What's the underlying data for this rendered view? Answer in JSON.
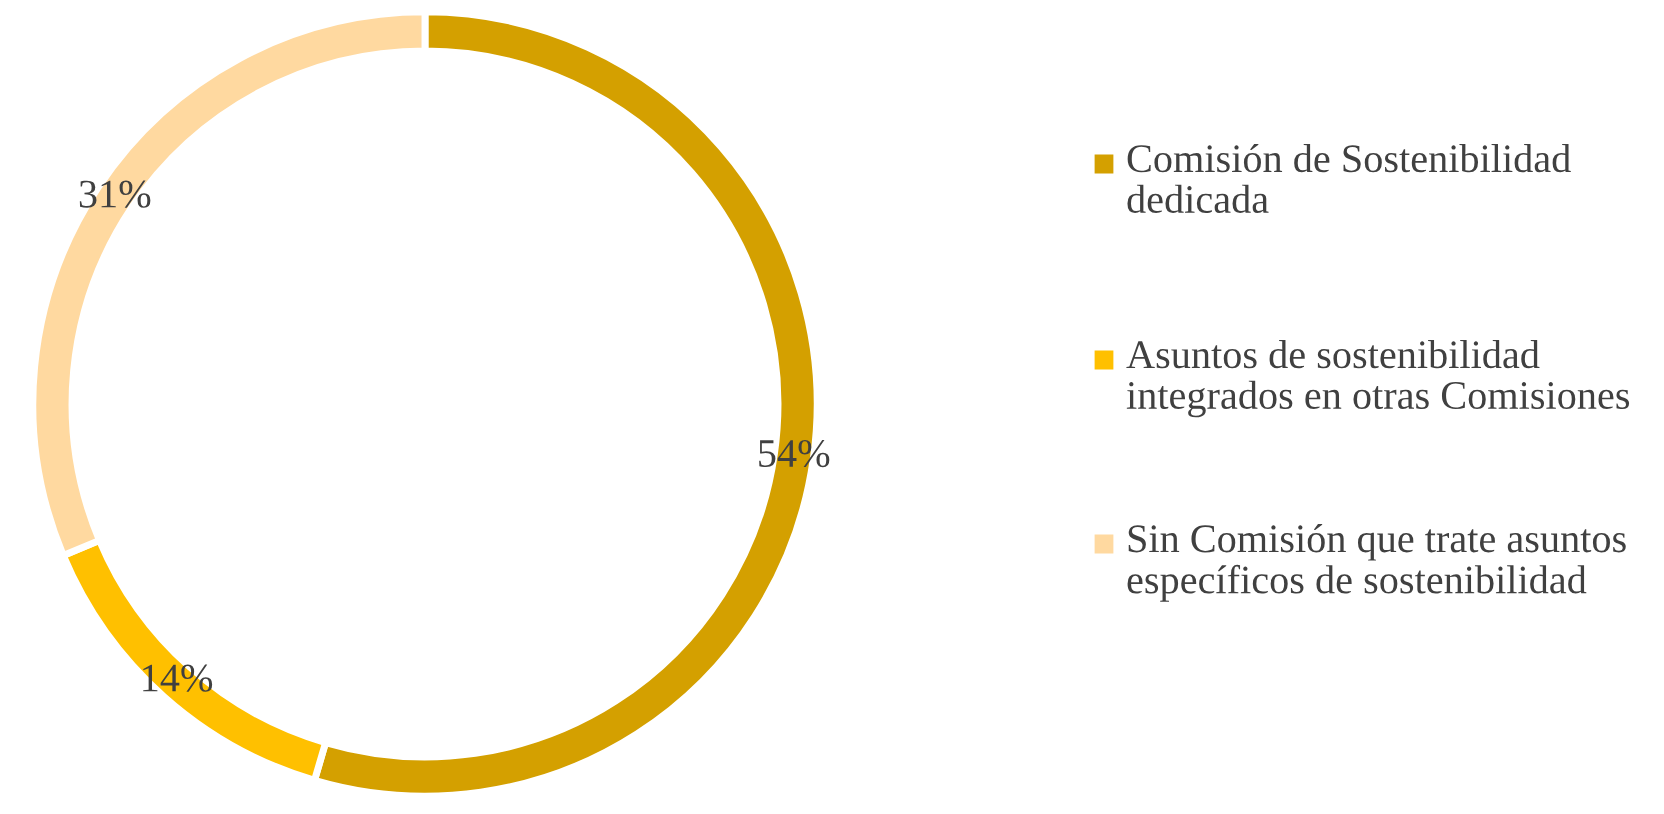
{
  "chart_data": {
    "type": "donut",
    "categories": [
      "Comisión de Sostenibilidad dedicada",
      "Asuntos de sostenibilidad integrados en otras Comisiones",
      "Sin Comisión que trate asuntos específicos de sostenibilidad"
    ],
    "values": [
      54,
      14,
      31
    ],
    "colors": [
      "#d4a000",
      "#ffc000",
      "#ffd9a0"
    ],
    "value_labels": [
      "54%",
      "14%",
      "31%"
    ],
    "legend": "right"
  }
}
